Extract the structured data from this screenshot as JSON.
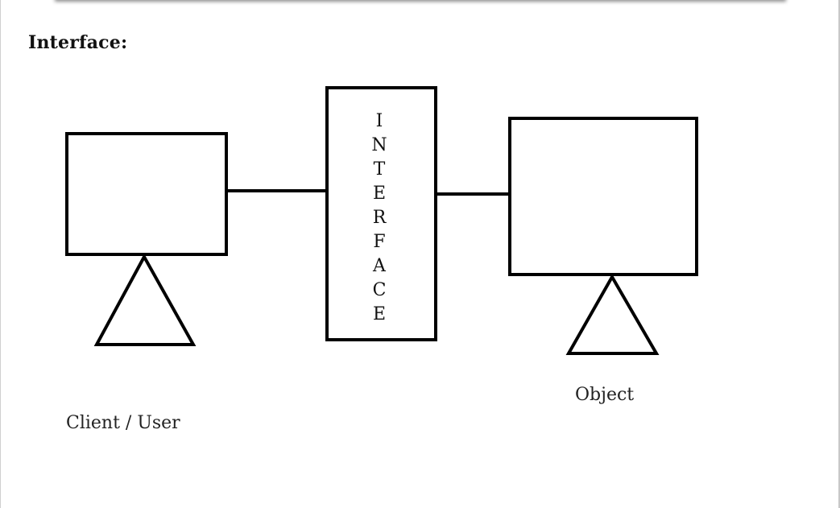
{
  "heading": "Interface:",
  "interface_letters": [
    "I",
    "N",
    "T",
    "E",
    "R",
    "F",
    "A",
    "C",
    "E"
  ],
  "client_caption": "Client / User",
  "object_caption": "Object",
  "colors": {
    "stroke": "#000000",
    "text": "#111111",
    "background": "#ffffff"
  }
}
